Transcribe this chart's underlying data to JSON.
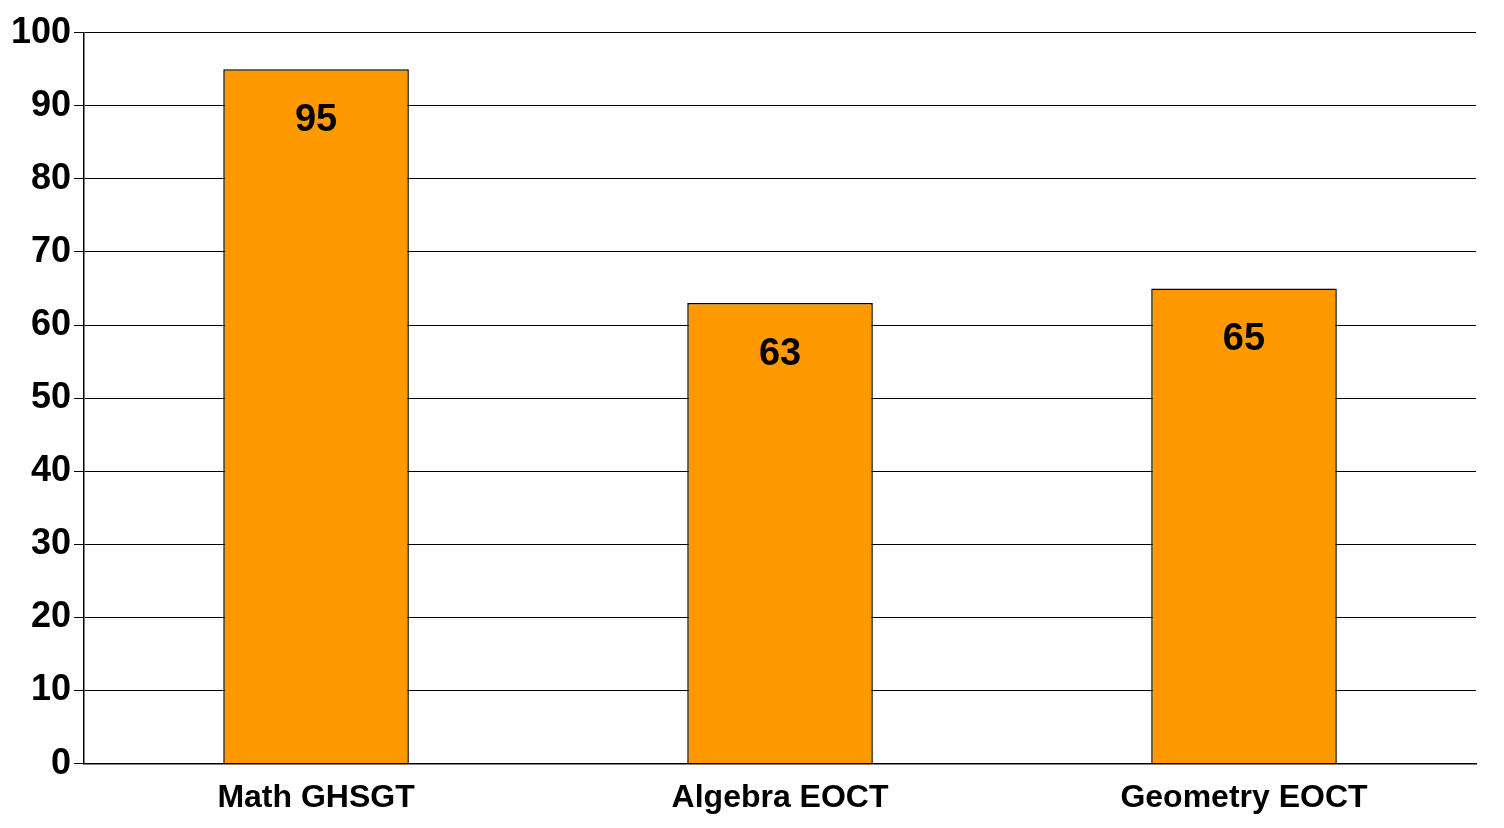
{
  "chart_data": {
    "type": "bar",
    "categories": [
      "Math GHSGT",
      "Algebra EOCT",
      "Geometry EOCT"
    ],
    "values": [
      95,
      63,
      65
    ],
    "color": "#ff9900",
    "ylim": [
      0,
      100
    ],
    "yticks": [
      0,
      10,
      20,
      30,
      40,
      50,
      60,
      70,
      80,
      90,
      100
    ],
    "grid": "y",
    "legend": false,
    "data_labels": true
  }
}
